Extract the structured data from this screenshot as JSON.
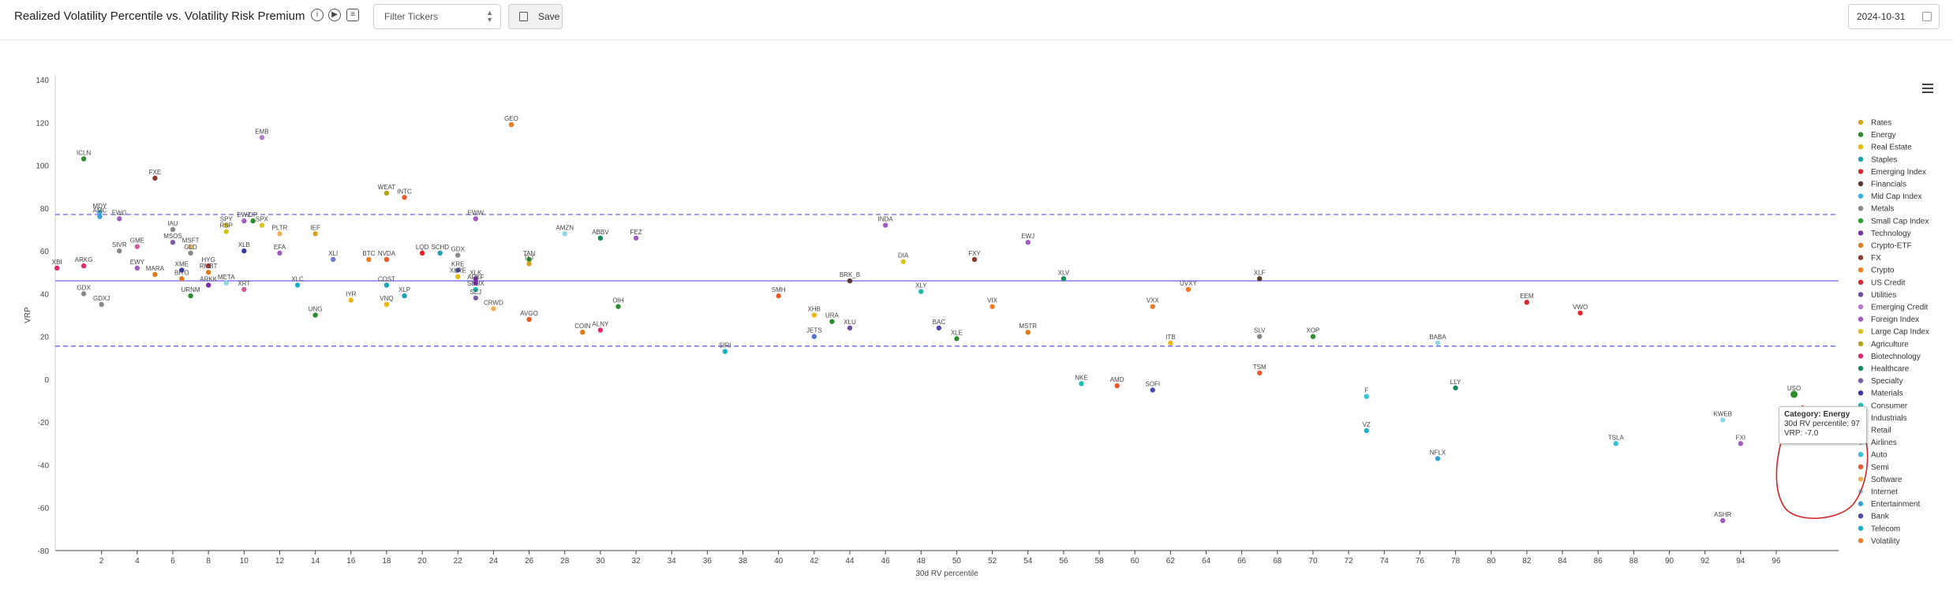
{
  "header": {
    "title": "Realized Volatility Percentile vs. Volatility Risk Premium",
    "filter_placeholder": "Filter Tickers",
    "save_label": "Save",
    "date_value": "2024-10-31",
    "icons": [
      "info-icon",
      "play-icon",
      "comment-icon",
      "chevron-updown-icon",
      "save-floppy-icon",
      "calendar-icon",
      "hamburger-menu-icon"
    ]
  },
  "tooltip": {
    "category": "Category: Energy",
    "rv_line": "30d RV percentile: 97",
    "vrp_line": "VRP: -7.0"
  },
  "chart_data": {
    "type": "scatter",
    "title": "",
    "xlabel": "30d RV percentile",
    "ylabel": "VRP",
    "xlim": [
      -0.6,
      99.5
    ],
    "ylim": [
      -80,
      140
    ],
    "xticks": [
      2,
      4,
      6,
      8,
      10,
      12,
      14,
      16,
      18,
      20,
      22,
      24,
      26,
      28,
      30,
      32,
      34,
      36,
      38,
      40,
      42,
      44,
      46,
      48,
      50,
      52,
      54,
      56,
      58,
      60,
      62,
      64,
      66,
      68,
      70,
      72,
      74,
      76,
      78,
      80,
      82,
      84,
      86,
      88,
      90,
      92,
      94,
      96
    ],
    "yticks": [
      -80,
      -60,
      -40,
      -20,
      0,
      20,
      40,
      60,
      80,
      100,
      120,
      140
    ],
    "grid": false,
    "legend_position": "right",
    "reference_lines": [
      {
        "y": 77,
        "style": "dashed"
      },
      {
        "y": 46,
        "style": "solid"
      },
      {
        "y": 15.5,
        "style": "dashed"
      }
    ],
    "categories": [
      {
        "name": "Rates",
        "color": "#d4a21c"
      },
      {
        "name": "Energy",
        "color": "#2e8b2e"
      },
      {
        "name": "Real Estate",
        "color": "#e8b90f"
      },
      {
        "name": "Staples",
        "color": "#1aa3b5"
      },
      {
        "name": "Emerging Index",
        "color": "#d6282e"
      },
      {
        "name": "Financials",
        "color": "#5a3a2a"
      },
      {
        "name": "Mid Cap Index",
        "color": "#3ab0e6"
      },
      {
        "name": "Metals",
        "color": "#888888"
      },
      {
        "name": "Small Cap Index",
        "color": "#2aa02a"
      },
      {
        "name": "Technology",
        "color": "#7b2fa6"
      },
      {
        "name": "Crypto-ETF",
        "color": "#e07b1a"
      },
      {
        "name": "FX",
        "color": "#8c3b2e"
      },
      {
        "name": "Crypto",
        "color": "#ef7d22"
      },
      {
        "name": "US Credit",
        "color": "#e0262a"
      },
      {
        "name": "Utilities",
        "color": "#6d4aa3"
      },
      {
        "name": "Emerging Credit",
        "color": "#b57acb"
      },
      {
        "name": "Foreign Index",
        "color": "#a15cc0"
      },
      {
        "name": "Large Cap Index",
        "color": "#d8c41e"
      },
      {
        "name": "Agriculture",
        "color": "#b5a21c"
      },
      {
        "name": "Biotechnology",
        "color": "#e02a6a"
      },
      {
        "name": "Healthcare",
        "color": "#1a8a5a"
      },
      {
        "name": "Specialty",
        "color": "#7a5fa0"
      },
      {
        "name": "Materials",
        "color": "#3a3aa6"
      },
      {
        "name": "Consumer",
        "color": "#1fbcb0"
      },
      {
        "name": "Industrials",
        "color": "#6e7bd6"
      },
      {
        "name": "Retail",
        "color": "#d65a9a"
      },
      {
        "name": "Airlines",
        "color": "#5577c9"
      },
      {
        "name": "Auto",
        "color": "#2fc4d6"
      },
      {
        "name": "Semi",
        "color": "#e85a2a"
      },
      {
        "name": "Software",
        "color": "#f0b05a"
      },
      {
        "name": "Internet",
        "color": "#8fd6e6"
      },
      {
        "name": "Entertainment",
        "color": "#3a9fd6"
      },
      {
        "name": "Bank",
        "color": "#4a4ab0"
      },
      {
        "name": "Telecom",
        "color": "#1ab0c8"
      },
      {
        "name": "Volatility",
        "color": "#f07a2a"
      }
    ],
    "points": [
      {
        "t": "ICLN",
        "x": 1,
        "y": 103,
        "c": "Energy"
      },
      {
        "t": "FXE",
        "x": 5,
        "y": 94,
        "c": "FX"
      },
      {
        "t": "EMB",
        "x": 11,
        "y": 113,
        "c": "Emerging Credit"
      },
      {
        "t": "GEO",
        "x": 25,
        "y": 119,
        "c": "Crypto"
      },
      {
        "t": "WEAT",
        "x": 18,
        "y": 87,
        "c": "Agriculture"
      },
      {
        "t": "INTC",
        "x": 19,
        "y": 85,
        "c": "Semi"
      },
      {
        "t": "MDY",
        "x": 1.9,
        "y": 78,
        "c": "Mid Cap Index"
      },
      {
        "t": "AMC",
        "x": 1.9,
        "y": 76,
        "c": "Entertainment"
      },
      {
        "t": "EWG",
        "x": 3,
        "y": 75,
        "c": "Foreign Index"
      },
      {
        "t": "EWW",
        "x": 23,
        "y": 75,
        "c": "Foreign Index"
      },
      {
        "t": "INDA",
        "x": 46,
        "y": 72,
        "c": "Foreign Index"
      },
      {
        "t": "IAU",
        "x": 6,
        "y": 70,
        "c": "Metals"
      },
      {
        "t": "SPY",
        "x": 9,
        "y": 72,
        "c": "Large Cap Index"
      },
      {
        "t": "RSP",
        "x": 9,
        "y": 69,
        "c": "Large Cap Index"
      },
      {
        "t": "EWZ",
        "x": 10,
        "y": 74,
        "c": "Foreign Index"
      },
      {
        "t": "UP",
        "x": 10.5,
        "y": 74,
        "c": "Energy"
      },
      {
        "t": "SPX",
        "x": 11,
        "y": 72,
        "c": "Large Cap Index"
      },
      {
        "t": "PLTR",
        "x": 12,
        "y": 68,
        "c": "Software"
      },
      {
        "t": "IEF",
        "x": 14,
        "y": 68,
        "c": "Rates"
      },
      {
        "t": "AMZN",
        "x": 28,
        "y": 68,
        "c": "Internet"
      },
      {
        "t": "ABBV",
        "x": 30,
        "y": 66,
        "c": "Healthcare"
      },
      {
        "t": "FEZ",
        "x": 32,
        "y": 66,
        "c": "Foreign Index"
      },
      {
        "t": "EWJ",
        "x": 54,
        "y": 64,
        "c": "Foreign Index"
      },
      {
        "t": "MSOS",
        "x": 6,
        "y": 64,
        "c": "Specialty"
      },
      {
        "t": "MSFT",
        "x": 7,
        "y": 62,
        "c": "Software"
      },
      {
        "t": "SIVR",
        "x": 3,
        "y": 60,
        "c": "Metals"
      },
      {
        "t": "GME",
        "x": 4,
        "y": 62,
        "c": "Retail"
      },
      {
        "t": "GLD",
        "x": 7,
        "y": 59,
        "c": "Metals"
      },
      {
        "t": "XLB",
        "x": 10,
        "y": 60,
        "c": "Materials"
      },
      {
        "t": "EFA",
        "x": 12,
        "y": 59,
        "c": "Foreign Index"
      },
      {
        "t": "XLI",
        "x": 15,
        "y": 56,
        "c": "Industrials"
      },
      {
        "t": "BTC",
        "x": 17,
        "y": 56,
        "c": "Crypto"
      },
      {
        "t": "NVDA",
        "x": 18,
        "y": 56,
        "c": "Semi"
      },
      {
        "t": "LQD",
        "x": 20,
        "y": 59,
        "c": "US Credit"
      },
      {
        "t": "SCHD",
        "x": 21,
        "y": 59,
        "c": "Staples"
      },
      {
        "t": "GDX",
        "x": 22,
        "y": 58,
        "c": "Metals"
      },
      {
        "t": "TAN",
        "x": 26,
        "y": 56,
        "c": "Energy"
      },
      {
        "t": "TLT",
        "x": 26,
        "y": 54,
        "c": "Rates"
      },
      {
        "t": "FXY",
        "x": 51,
        "y": 56,
        "c": "FX"
      },
      {
        "t": "DIA",
        "x": 47,
        "y": 55,
        "c": "Large Cap Index"
      },
      {
        "t": "XBI",
        "x": -0.5,
        "y": 52,
        "c": "Biotechnology"
      },
      {
        "t": "ARKG",
        "x": 1,
        "y": 53,
        "c": "Biotechnology"
      },
      {
        "t": "EWY",
        "x": 4,
        "y": 52,
        "c": "Foreign Index"
      },
      {
        "t": "MARA",
        "x": 5,
        "y": 49,
        "c": "Crypto-ETF"
      },
      {
        "t": "XME",
        "x": 6.5,
        "y": 51,
        "c": "Materials"
      },
      {
        "t": "HYG",
        "x": 8,
        "y": 53,
        "c": "US Credit"
      },
      {
        "t": "RMBT",
        "x": 8,
        "y": 50,
        "c": "Crypto-ETF"
      },
      {
        "t": "BITO",
        "x": 6.5,
        "y": 47,
        "c": "Crypto-ETF"
      },
      {
        "t": "ARKK",
        "x": 8,
        "y": 44,
        "c": "Technology"
      },
      {
        "t": "META",
        "x": 9,
        "y": 45,
        "c": "Internet"
      },
      {
        "t": "KRE",
        "x": 22,
        "y": 51,
        "c": "Bank"
      },
      {
        "t": "XLRE",
        "x": 22,
        "y": 48,
        "c": "Real Estate"
      },
      {
        "t": "XLK",
        "x": 23,
        "y": 47,
        "c": "Technology"
      },
      {
        "t": "ARKF",
        "x": 23,
        "y": 45,
        "c": "Technology"
      },
      {
        "t": "GDX",
        "x": 1,
        "y": 40,
        "c": "Metals"
      },
      {
        "t": "GDXJ",
        "x": 2,
        "y": 35,
        "c": "Metals"
      },
      {
        "t": "URNM",
        "x": 7,
        "y": 39,
        "c": "Energy"
      },
      {
        "t": "XRT",
        "x": 10,
        "y": 42,
        "c": "Retail"
      },
      {
        "t": "XLC",
        "x": 13,
        "y": 44,
        "c": "Telecom"
      },
      {
        "t": "COST",
        "x": 18,
        "y": 44,
        "c": "Staples"
      },
      {
        "t": "SBUX",
        "x": 23,
        "y": 42,
        "c": "Consumer"
      },
      {
        "t": "SEJ",
        "x": 23,
        "y": 38,
        "c": "Specialty"
      },
      {
        "t": "IYR",
        "x": 16,
        "y": 37,
        "c": "Real Estate"
      },
      {
        "t": "VNQ",
        "x": 18,
        "y": 35,
        "c": "Real Estate"
      },
      {
        "t": "XLP",
        "x": 19,
        "y": 39,
        "c": "Staples"
      },
      {
        "t": "CRWD",
        "x": 24,
        "y": 33,
        "c": "Software"
      },
      {
        "t": "UNG",
        "x": 14,
        "y": 30,
        "c": "Energy"
      },
      {
        "t": "AVGO",
        "x": 26,
        "y": 28,
        "c": "Semi"
      },
      {
        "t": "OIH",
        "x": 31,
        "y": 34,
        "c": "Energy"
      },
      {
        "t": "SMH",
        "x": 40,
        "y": 39,
        "c": "Semi"
      },
      {
        "t": "BRK_B",
        "x": 44,
        "y": 46,
        "c": "Financials"
      },
      {
        "t": "XLY",
        "x": 48,
        "y": 41,
        "c": "Consumer"
      },
      {
        "t": "XLV",
        "x": 56,
        "y": 47,
        "c": "Healthcare"
      },
      {
        "t": "XLF",
        "x": 67,
        "y": 47,
        "c": "Financials"
      },
      {
        "t": "UVXY",
        "x": 63,
        "y": 42,
        "c": "Volatility"
      },
      {
        "t": "VXX",
        "x": 61,
        "y": 34,
        "c": "Volatility"
      },
      {
        "t": "VIX",
        "x": 52,
        "y": 34,
        "c": "Volatility"
      },
      {
        "t": "EEM",
        "x": 82,
        "y": 36,
        "c": "Emerging Index"
      },
      {
        "t": "VWO",
        "x": 85,
        "y": 31,
        "c": "Emerging Index"
      },
      {
        "t": "XHB",
        "x": 42,
        "y": 30,
        "c": "Real Estate"
      },
      {
        "t": "URA",
        "x": 43,
        "y": 27,
        "c": "Energy"
      },
      {
        "t": "XLU",
        "x": 44,
        "y": 24,
        "c": "Utilities"
      },
      {
        "t": "JETS",
        "x": 42,
        "y": 20,
        "c": "Airlines"
      },
      {
        "t": "COIN",
        "x": 29,
        "y": 22,
        "c": "Crypto-ETF"
      },
      {
        "t": "ALNY",
        "x": 30,
        "y": 23,
        "c": "Biotechnology"
      },
      {
        "t": "BAC",
        "x": 49,
        "y": 24,
        "c": "Bank"
      },
      {
        "t": "XLE",
        "x": 50,
        "y": 19,
        "c": "Energy"
      },
      {
        "t": "MSTR",
        "x": 54,
        "y": 22,
        "c": "Crypto-ETF"
      },
      {
        "t": "ITB",
        "x": 62,
        "y": 17,
        "c": "Real Estate"
      },
      {
        "t": "SLV",
        "x": 67,
        "y": 20,
        "c": "Metals"
      },
      {
        "t": "XOP",
        "x": 70,
        "y": 20,
        "c": "Energy"
      },
      {
        "t": "BABA",
        "x": 77,
        "y": 17,
        "c": "Internet"
      },
      {
        "t": "SIRI",
        "x": 37,
        "y": 13,
        "c": "Telecom"
      },
      {
        "t": "TSM",
        "x": 67,
        "y": 3,
        "c": "Semi"
      },
      {
        "t": "NKE",
        "x": 57,
        "y": -2,
        "c": "Consumer"
      },
      {
        "t": "AMD",
        "x": 59,
        "y": -3,
        "c": "Semi"
      },
      {
        "t": "SOFI",
        "x": 61,
        "y": -5,
        "c": "Bank"
      },
      {
        "t": "F",
        "x": 73,
        "y": -8,
        "c": "Auto"
      },
      {
        "t": "LLY",
        "x": 78,
        "y": -4,
        "c": "Healthcare"
      },
      {
        "t": "VZ",
        "x": 73,
        "y": -24,
        "c": "Telecom"
      },
      {
        "t": "NFLX",
        "x": 77,
        "y": -37,
        "c": "Entertainment"
      },
      {
        "t": "TSLA",
        "x": 87,
        "y": -30,
        "c": "Auto"
      },
      {
        "t": "KWEB",
        "x": 93,
        "y": -19,
        "c": "Internet"
      },
      {
        "t": "FXI",
        "x": 94,
        "y": -30,
        "c": "Foreign Index"
      },
      {
        "t": "ASHR",
        "x": 93,
        "y": -66,
        "c": "Foreign Index"
      },
      {
        "t": "USO",
        "x": 97,
        "y": -7,
        "c": "Energy"
      }
    ]
  }
}
